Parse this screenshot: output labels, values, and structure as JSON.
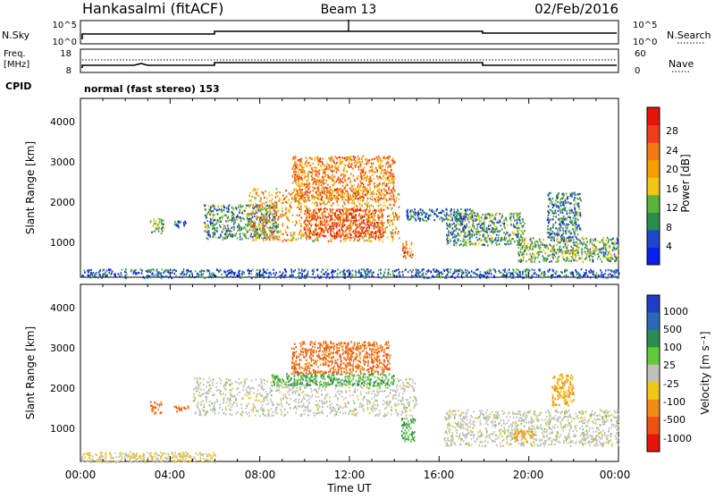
{
  "header": {
    "station": "Hankasalmi (fitACF)",
    "beam": "Beam 13",
    "date": "02/Feb/2016"
  },
  "sky_panel": {
    "left_label": "N.Sky",
    "left_ticks": [
      "10^5",
      "10^0"
    ],
    "right_label": "N.Search",
    "right_ticks": [
      "10^5",
      "10^0"
    ]
  },
  "freq_panel": {
    "left_label_1": "Freq.",
    "left_label_2": "[MHz]",
    "left_ticks": [
      "18",
      "8"
    ],
    "right_label": "Nave",
    "right_ticks": [
      "60",
      "0"
    ]
  },
  "cpid": {
    "label": "CPID",
    "text": "normal (fast stereo) 153"
  },
  "power_panel": {
    "ylabel": "Slant Range [km]",
    "yticks": [
      "4000",
      "3000",
      "2000",
      "1000"
    ],
    "colorbar_label": "Power [dB]",
    "colorbar_ticks": [
      "28",
      "24",
      "20",
      "16",
      "12",
      "8",
      "4"
    ],
    "colors": [
      "#0a1ef0",
      "#1e46c8",
      "#2a8c50",
      "#5ab43c",
      "#f0c814",
      "#f5a000",
      "#f57814",
      "#f03c1e",
      "#e6140a"
    ]
  },
  "velocity_panel": {
    "ylabel": "Slant Range [km]",
    "yticks": [
      "4000",
      "3000",
      "2000",
      "1000"
    ],
    "colorbar_label": "Velocity [m s⁻¹]",
    "colorbar_ticks": [
      "1000",
      "500",
      "100",
      "25",
      "-25",
      "-100",
      "-500",
      "-1000"
    ],
    "colors": [
      "#1e3cc8",
      "#2a6ab4",
      "#2a8c50",
      "#64c83c",
      "#c0c0b8",
      "#f0c814",
      "#f08c14",
      "#f05014",
      "#e6140a"
    ]
  },
  "xaxis": {
    "label": "Time UT",
    "ticks": [
      "00:00",
      "04:00",
      "08:00",
      "12:00",
      "16:00",
      "20:00",
      "00:00"
    ]
  },
  "chart_data": [
    {
      "type": "heatmap",
      "title": "Power",
      "x_range_hours": [
        0,
        24
      ],
      "ylim": [
        200,
        4600
      ],
      "regions": [
        {
          "t0": 3.1,
          "t1": 3.7,
          "r0": 1300,
          "r1": 1700,
          "v": 12
        },
        {
          "t0": 4.1,
          "t1": 4.8,
          "r0": 1450,
          "r1": 1600,
          "v": 4
        },
        {
          "t0": 5.5,
          "t1": 8.8,
          "r0": 1150,
          "r1": 2000,
          "v": 10
        },
        {
          "t0": 7.5,
          "t1": 14.2,
          "r0": 1100,
          "r1": 2400,
          "v": 20
        },
        {
          "t0": 9.4,
          "t1": 14.0,
          "r0": 2100,
          "r1": 3200,
          "v": 22
        },
        {
          "t0": 10.0,
          "t1": 13.5,
          "r0": 1200,
          "r1": 1900,
          "v": 26
        },
        {
          "t0": 14.3,
          "t1": 14.8,
          "r0": 700,
          "r1": 1100,
          "v": 24
        },
        {
          "t0": 14.5,
          "t1": 17.5,
          "r0": 1600,
          "r1": 1900,
          "v": 6
        },
        {
          "t0": 16.3,
          "t1": 19.8,
          "r0": 1000,
          "r1": 1800,
          "v": 10
        },
        {
          "t0": 19.5,
          "t1": 24.0,
          "r0": 600,
          "r1": 1200,
          "v": 12
        },
        {
          "t0": 20.8,
          "t1": 22.3,
          "r0": 1200,
          "r1": 2300,
          "v": 8
        },
        {
          "t0": 0.0,
          "t1": 24.0,
          "r0": 200,
          "r1": 420,
          "v": 6
        }
      ]
    },
    {
      "type": "heatmap",
      "title": "Velocity",
      "x_range_hours": [
        0,
        24
      ],
      "ylim": [
        200,
        4600
      ],
      "regions": [
        {
          "t0": 3.1,
          "t1": 3.6,
          "r0": 1400,
          "r1": 1700,
          "v": -500
        },
        {
          "t0": 4.1,
          "t1": 4.8,
          "r0": 1450,
          "r1": 1600,
          "v": -500
        },
        {
          "t0": 5.0,
          "t1": 15.0,
          "r0": 1350,
          "r1": 2300,
          "v": 0
        },
        {
          "t0": 8.5,
          "t1": 14.0,
          "r0": 2100,
          "r1": 2400,
          "v": 100
        },
        {
          "t0": 9.4,
          "t1": 13.8,
          "r0": 2400,
          "r1": 3200,
          "v": -500
        },
        {
          "t0": 14.3,
          "t1": 14.9,
          "r0": 700,
          "r1": 1300,
          "v": 100
        },
        {
          "t0": 16.2,
          "t1": 24.0,
          "r0": 600,
          "r1": 1500,
          "v": 0
        },
        {
          "t0": 19.3,
          "t1": 20.2,
          "r0": 700,
          "r1": 1000,
          "v": -100
        },
        {
          "t0": 21.0,
          "t1": 22.0,
          "r0": 1600,
          "r1": 2400,
          "v": -100
        },
        {
          "t0": 0.0,
          "t1": 6.0,
          "r0": 200,
          "r1": 450,
          "v": -25
        }
      ]
    }
  ]
}
